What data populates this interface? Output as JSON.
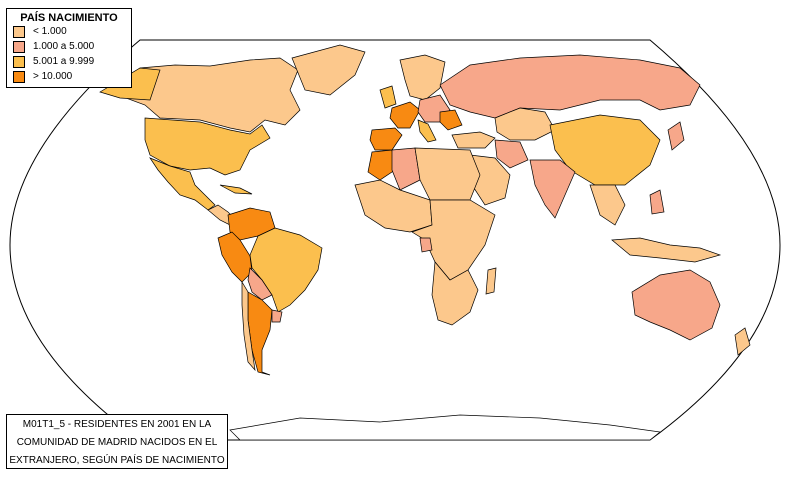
{
  "legend": {
    "title": "PAÍS NACIMIENTO",
    "items": [
      {
        "label": "< 1.000",
        "color": "#fcc88c"
      },
      {
        "label": "1.000 a 5.000",
        "color": "#f7a78a"
      },
      {
        "label": "5.001 a 9.999",
        "color": "#fbbf4e"
      },
      {
        "label": "> 10.000",
        "color": "#f88a12"
      }
    ]
  },
  "caption": {
    "line1": "M01T1_5 - RESIDENTES EN 2001 EN LA",
    "line2": "COMUNIDAD DE MADRID NACIDOS EN EL",
    "line3": "EXTRANJERO, SEGÚN PAÍS DE NACIMIENTO"
  },
  "colors": {
    "background": "#ffffff",
    "ocean": "#ffffff",
    "border": "#000000"
  }
}
